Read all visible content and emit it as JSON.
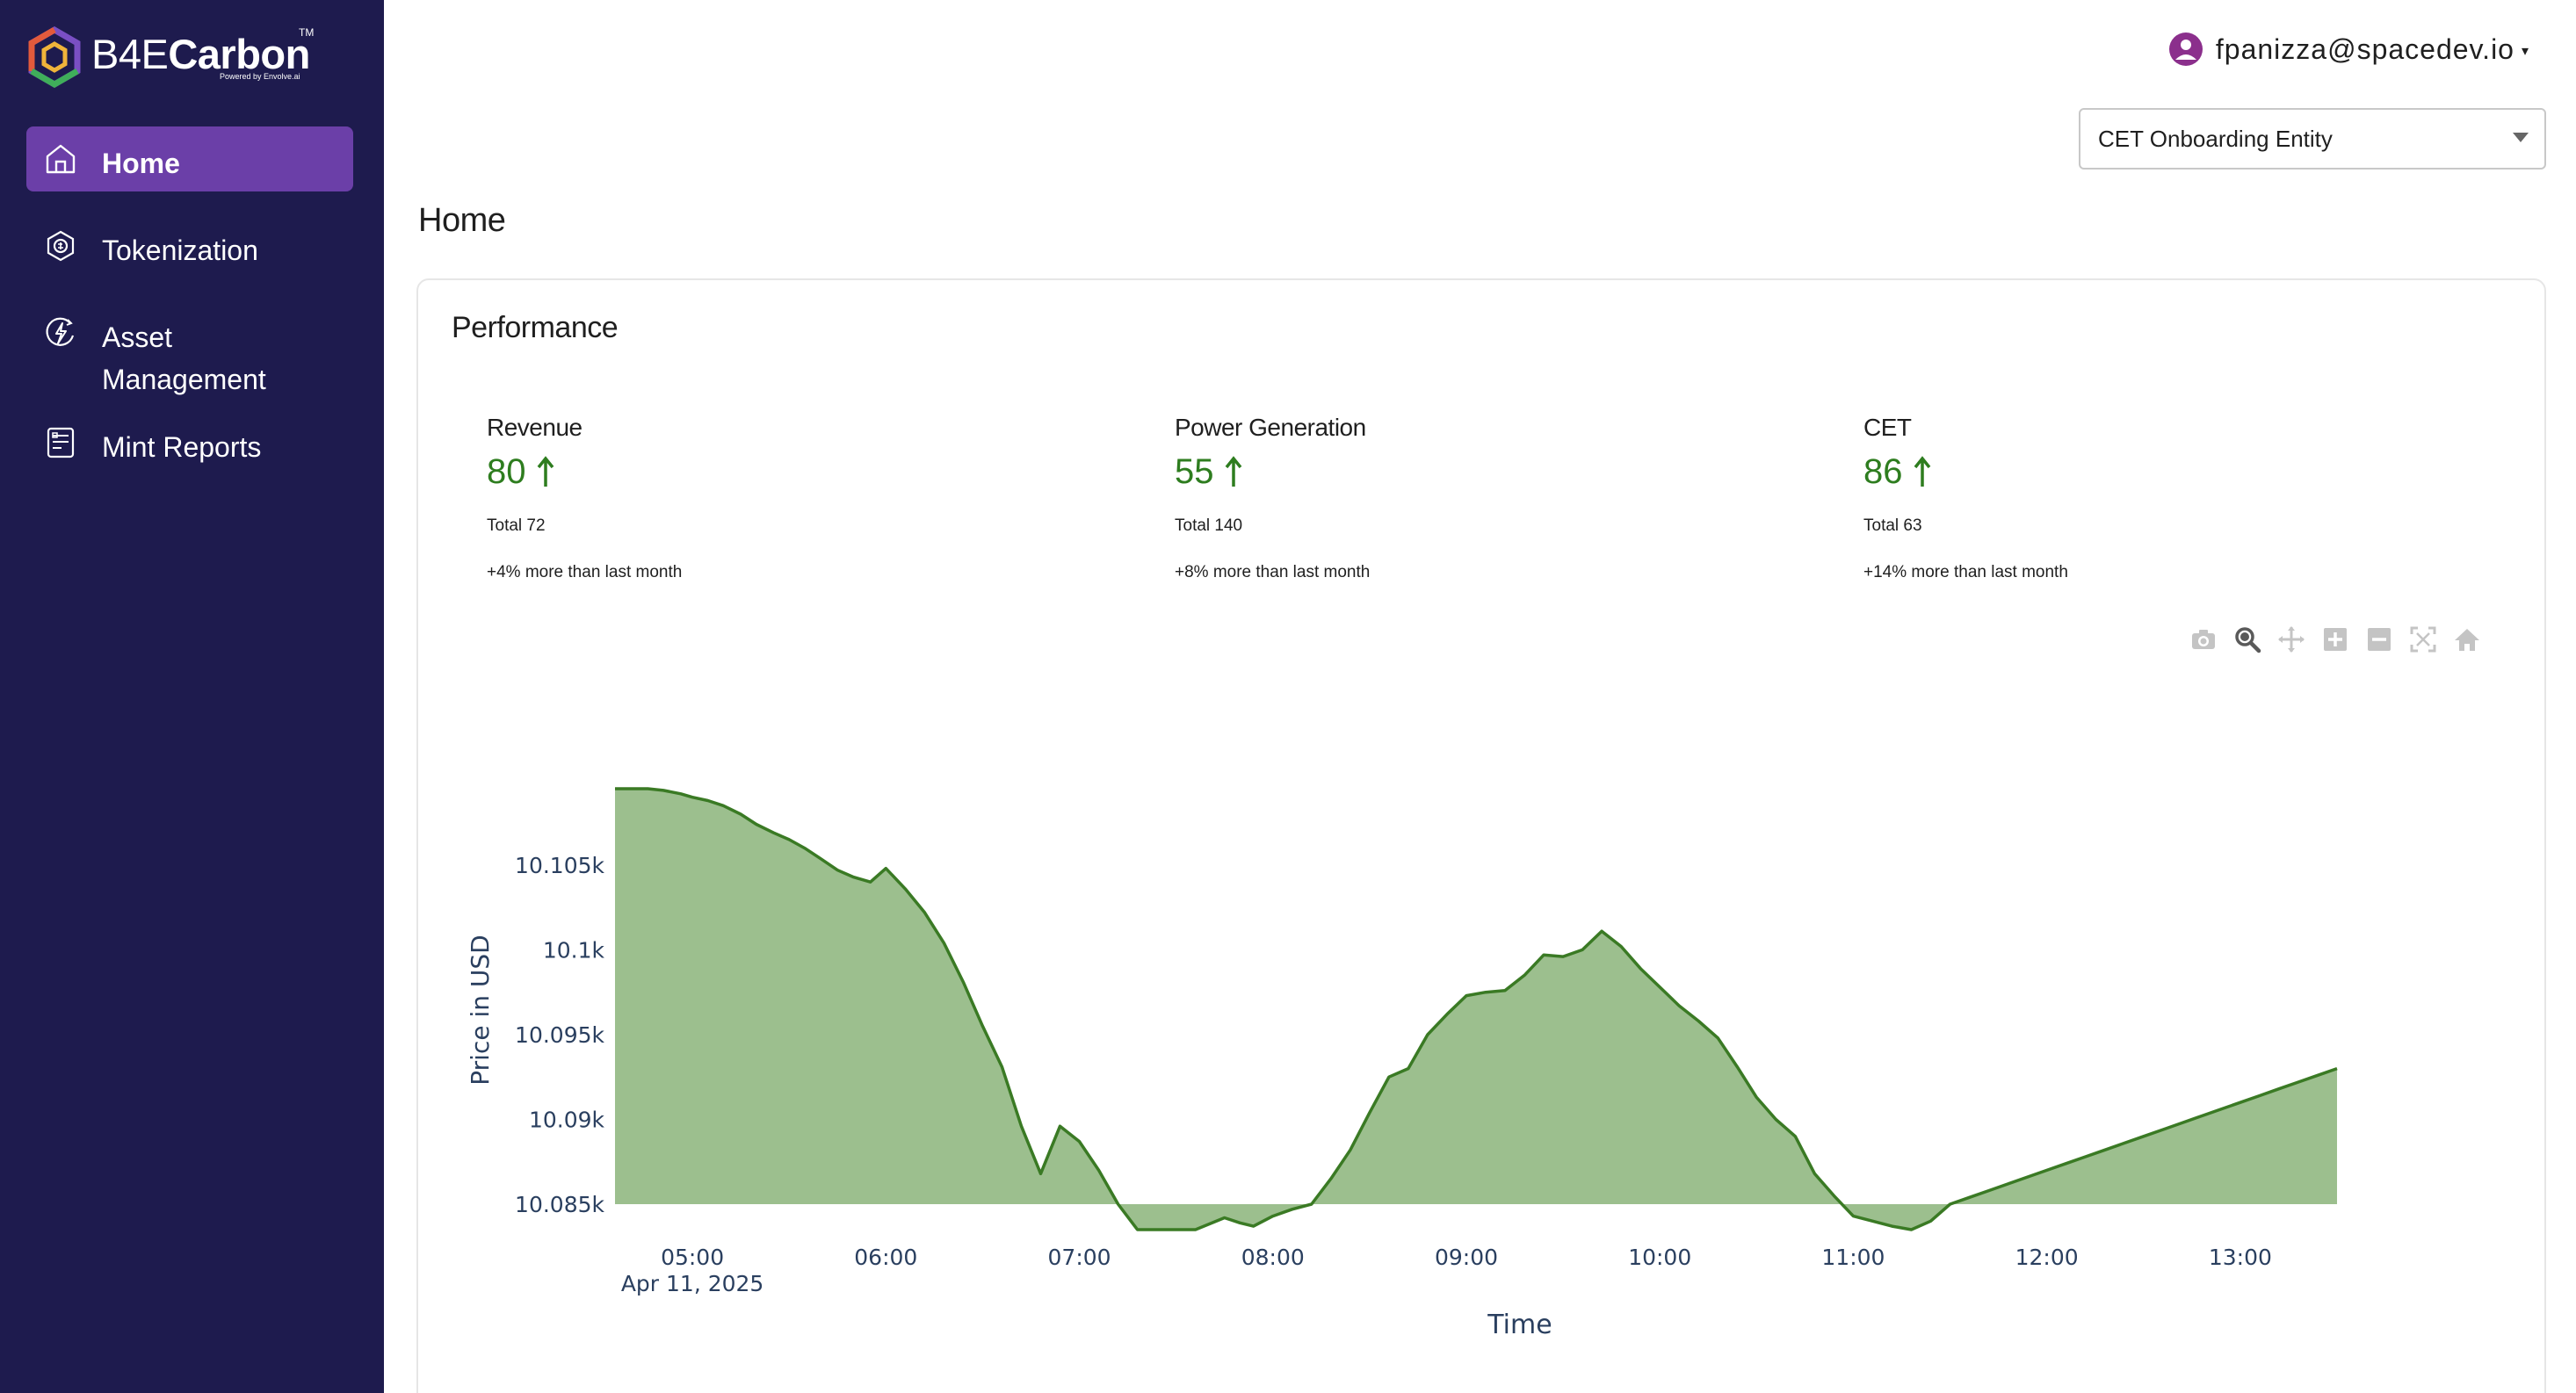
{
  "brand": {
    "name_light": "B4E",
    "name_bold": "Carbon",
    "tm": "TM",
    "tagline": "Powered by Envolve.ai"
  },
  "sidebar": {
    "items": [
      {
        "label": "Home",
        "icon": "home-icon",
        "active": true
      },
      {
        "label": "Tokenization",
        "icon": "tokenization-icon",
        "active": false
      },
      {
        "label": "Asset Management",
        "icon": "asset-management-icon",
        "active": false
      },
      {
        "label": "Mint Reports",
        "icon": "mint-reports-icon",
        "active": false
      }
    ]
  },
  "header": {
    "user_email": "fpanizza@spacedev.io",
    "entity": "CET Onboarding Entity"
  },
  "page": {
    "title": "Home"
  },
  "performance": {
    "title": "Performance",
    "metrics": [
      {
        "label": "Revenue",
        "value": "80",
        "total": "Total 72",
        "change": "+4% more than last month"
      },
      {
        "label": "Power Generation",
        "value": "55",
        "total": "Total 140",
        "change": "+8% more than last month"
      },
      {
        "label": "CET",
        "value": "86",
        "total": "Total 63",
        "change": "+14% more than last month"
      }
    ]
  },
  "modebar": [
    "camera-icon",
    "zoom-icon",
    "pan-icon",
    "zoom-in-icon",
    "zoom-out-icon",
    "autoscale-icon",
    "reset-axes-icon"
  ],
  "colors": {
    "sidebar_bg": "#1e1b4e",
    "active_item": "#6b3fa8",
    "metric_green": "#2e7d1f",
    "area_fill": "#9cbf8e",
    "area_line": "#3a7a24"
  },
  "chart_data": {
    "type": "area",
    "xlabel": "Time",
    "ylabel": "Price in USD",
    "x_tick_labels": [
      "05:00",
      "06:00",
      "07:00",
      "08:00",
      "09:00",
      "10:00",
      "11:00",
      "12:00",
      "13:00"
    ],
    "x_date_label": "Apr 11, 2025",
    "y_tick_labels": [
      "10.085k",
      "10.09k",
      "10.095k",
      "10.1k",
      "10.105k"
    ],
    "y_ticks": [
      10085,
      10090,
      10095,
      10100,
      10105
    ],
    "ylim": [
      10083.5,
      10109.5
    ],
    "fill_baseline": 10085,
    "x_range_hours": [
      4.6,
      13.5
    ],
    "series": [
      {
        "x": [
          4.6,
          4.68,
          4.77,
          4.85,
          4.94,
          5.0,
          5.08,
          5.16,
          5.25,
          5.33,
          5.42,
          5.5,
          5.58,
          5.66,
          5.75,
          5.83,
          5.92,
          6.0,
          6.1,
          6.2,
          6.3,
          6.4,
          6.5,
          6.6,
          6.7,
          6.8,
          6.9,
          7.0,
          7.1,
          7.2,
          7.3,
          7.45,
          7.6,
          7.75,
          7.83,
          7.9,
          8.0,
          8.1,
          8.2,
          8.3,
          8.4,
          8.5,
          8.6,
          8.7,
          8.8,
          8.9,
          9.0,
          9.1,
          9.2,
          9.3,
          9.4,
          9.5,
          9.6,
          9.7,
          9.8,
          9.9,
          10.0,
          10.1,
          10.2,
          10.3,
          10.4,
          10.5,
          10.6,
          10.7,
          10.8,
          10.9,
          11.0,
          11.1,
          11.2,
          11.3,
          11.4,
          11.5,
          11.6,
          11.7,
          11.8,
          11.9,
          12.0,
          12.1,
          12.2,
          12.3,
          12.4,
          12.5,
          12.6,
          12.7,
          12.8,
          12.9,
          13.0,
          13.1,
          13.2,
          13.3,
          13.4,
          13.5
        ],
        "y": [
          10110.0,
          10109.8,
          10109.6,
          10109.4,
          10109.2,
          10109.0,
          10108.8,
          10108.5,
          10108.0,
          10107.4,
          10106.9,
          10106.5,
          10106.0,
          10105.4,
          10104.7,
          10104.3,
          10104.0,
          10104.8,
          10103.6,
          10102.2,
          10100.4,
          10098.1,
          10095.5,
          10093.1,
          10089.6,
          10086.8,
          10089.6,
          10088.7,
          10087.0,
          10085.0,
          10083.2,
          10083.0,
          10082.4,
          10084.2,
          10083.9,
          10083.7,
          10084.3,
          10084.7,
          10085.0,
          10086.5,
          10088.2,
          10090.4,
          10092.5,
          10093.0,
          10095.0,
          10096.2,
          10097.3,
          10097.5,
          10097.6,
          10098.5,
          10099.7,
          10099.6,
          10100.0,
          10101.1,
          10100.2,
          10098.9,
          10097.8,
          10096.7,
          10095.8,
          10094.8,
          10093.1,
          10091.3,
          10090.0,
          10089.0,
          10086.8,
          10085.5,
          10084.3,
          10084.0,
          10083.7,
          10083.5,
          10084.0,
          10085.0,
          10085.4,
          10085.8,
          10086.2,
          10086.6,
          10087.0,
          10087.4,
          10087.8,
          10088.2,
          10088.6,
          10089.0,
          10089.4,
          10089.8,
          10090.2,
          10090.6,
          10091.0,
          10091.4,
          10091.8,
          10092.2,
          10092.6,
          10093.0
        ]
      }
    ]
  }
}
